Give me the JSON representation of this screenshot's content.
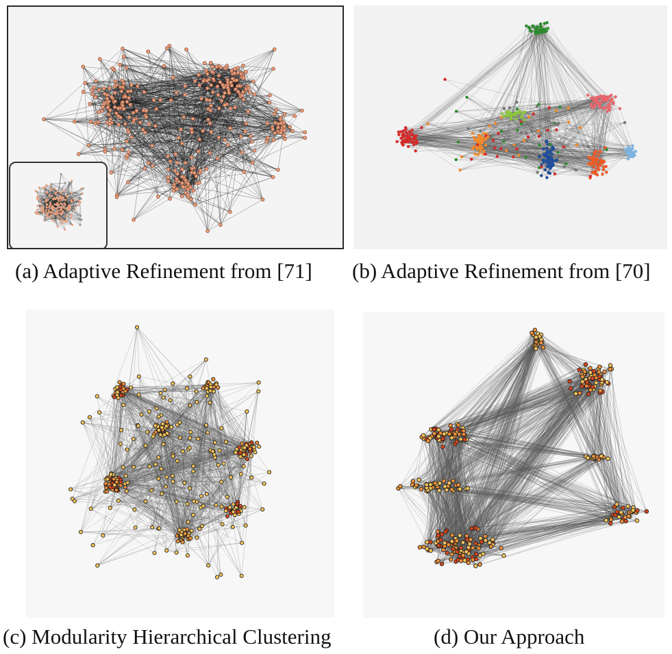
{
  "figure": {
    "captions": {
      "a": "(a)  Adaptive Refinement from [71]",
      "b": "(b)  Adaptive Refinement from [70]",
      "c": "(c)  Modularity Hierarchical Clustering",
      "d": "(d)  Our Approach"
    }
  },
  "colors": {
    "edge_dark": "#1a1a1a",
    "edge_gray": "#555555",
    "node_salmon": "#e9a07f",
    "node_yellow": "#f7c65a",
    "node_orange": "#f0923a",
    "node_red": "#d9451c",
    "cluster_green": "#2e8b2e",
    "cluster_red": "#d42a2a",
    "cluster_orange": "#f08a2a",
    "cluster_lime": "#8cc63f",
    "cluster_blue": "#1f4e9c",
    "cluster_pink": "#e8666b",
    "cluster_sky": "#7fb3e0",
    "cluster_tomato": "#ee5a24"
  }
}
